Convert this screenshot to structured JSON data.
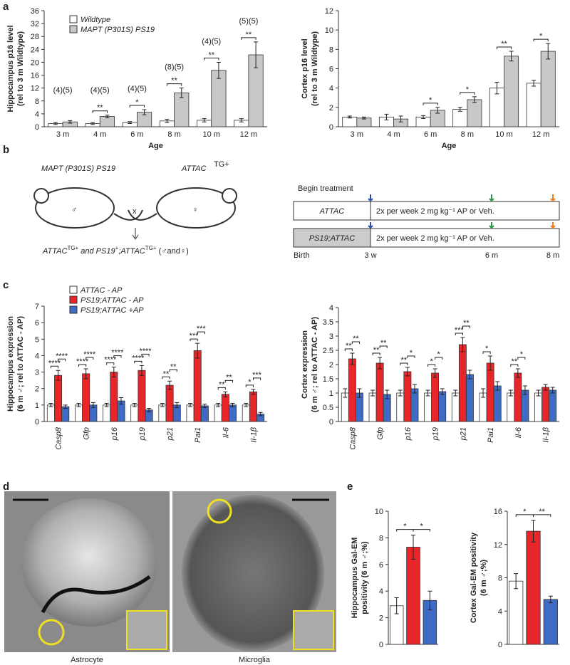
{
  "panels": [
    "a",
    "b",
    "c",
    "d",
    "e"
  ],
  "chart_data": [
    {
      "type": "bar",
      "ylabel": [
        "Hippocampus p16 level",
        "(rel to 3 m Wildtype)"
      ],
      "xlabel": "Age",
      "categories": [
        "3 m",
        "4 m",
        "6 m",
        "8 m",
        "10 m",
        "12 m"
      ],
      "series": [
        {
          "name": "Wildtype",
          "color": "#ffffff",
          "values": [
            1,
            1,
            1.3,
            1.8,
            2,
            2
          ],
          "errors": [
            0.3,
            0.3,
            0.3,
            0.5,
            0.5,
            0.5
          ]
        },
        {
          "name": "MAPT (P301S) PS19",
          "color": "#c8c8c8",
          "values": [
            1.5,
            3.2,
            4.5,
            10.5,
            17.5,
            22.3
          ],
          "errors": [
            0.4,
            0.4,
            0.8,
            1.5,
            2.5,
            4
          ]
        }
      ],
      "ylim": [
        0,
        36
      ],
      "yticks": [
        0,
        4,
        8,
        12,
        16,
        20,
        24,
        28,
        32,
        36
      ],
      "legend": "upper left",
      "n_labels": [
        "(4)(5)",
        "(4)(5)",
        "(4)(5)",
        "(8)(5)",
        "(4)(5)",
        "(5)(5)"
      ],
      "significance": [
        null,
        "**",
        "*",
        "**",
        "**",
        "**"
      ]
    },
    {
      "type": "bar",
      "ylabel": [
        "Cortex p16 level",
        "(rel to 3 m Wildtype)"
      ],
      "xlabel": "Age",
      "categories": [
        "3 m",
        "4 m",
        "6 m",
        "8 m",
        "10 m",
        "12 m"
      ],
      "series": [
        {
          "name": null,
          "color": "#ffffff",
          "values": [
            1,
            1,
            1,
            1.8,
            4,
            4.5
          ],
          "errors": [
            0.1,
            0.3,
            0.15,
            0.2,
            0.6,
            0.3
          ]
        },
        {
          "name": null,
          "color": "#c8c8c8",
          "values": [
            0.9,
            0.8,
            1.7,
            2.8,
            7.3,
            7.8
          ],
          "errors": [
            0.1,
            0.3,
            0.3,
            0.3,
            0.5,
            0.8
          ]
        }
      ],
      "ylim": [
        0,
        12
      ],
      "yticks": [
        0,
        2,
        4,
        6,
        8,
        10,
        12
      ],
      "significance": [
        null,
        null,
        "*",
        "*",
        "**",
        "*"
      ]
    },
    {
      "type": "bar",
      "ylabel": [
        "Hippocampus expression",
        "(6 m ♂; rel to ATTAC - AP)"
      ],
      "categories": [
        "Casp8",
        "Gfp",
        "p16",
        "p19",
        "p21",
        "Pai1",
        "Il-6",
        "Il-1β"
      ],
      "series": [
        {
          "name": "ATTAC - AP",
          "color": "#ffffff",
          "values": [
            1,
            1,
            1,
            1,
            1,
            1,
            1,
            1
          ],
          "errors": [
            0.1,
            0.1,
            0.1,
            0.1,
            0.1,
            0.1,
            0.1,
            0.1
          ]
        },
        {
          "name": "PS19;ATTAC - AP",
          "color": "#e8262a",
          "values": [
            2.8,
            2.9,
            3,
            3.1,
            2.2,
            4.3,
            1.65,
            1.8
          ],
          "errors": [
            0.3,
            0.3,
            0.3,
            0.3,
            0.25,
            0.45,
            0.15,
            0.15
          ]
        },
        {
          "name": "PS19;ATTAC +AP",
          "color": "#3e6bc4",
          "values": [
            0.9,
            1,
            1.25,
            0.7,
            1,
            0.95,
            1,
            0.45
          ],
          "errors": [
            0.1,
            0.15,
            0.2,
            0.1,
            0.15,
            0.1,
            0.1,
            0.1
          ]
        }
      ],
      "ylim": [
        0,
        7
      ],
      "yticks": [
        0,
        1,
        2,
        3,
        4,
        5,
        6,
        7
      ],
      "legend": "upper left",
      "significance": [
        "****",
        "****",
        "****",
        "****",
        "**",
        "***",
        "**",
        "*"
      ],
      "significance_treated": [
        "****",
        "****",
        "****",
        "****",
        "**",
        "***",
        "**",
        "***"
      ]
    },
    {
      "type": "bar",
      "ylabel": [
        "Cortex expression",
        "(6 m ♂; rel to ATTAC - AP)"
      ],
      "categories": [
        "Casp8",
        "Gfp",
        "p16",
        "p19",
        "p21",
        "Pai1",
        "Il-6",
        "Il-1β"
      ],
      "series": [
        {
          "name": null,
          "color": "#ffffff",
          "values": [
            1,
            1,
            1,
            1,
            1,
            1,
            1,
            1
          ],
          "errors": [
            0.15,
            0.1,
            0.1,
            0.1,
            0.1,
            0.15,
            0.1,
            0.1
          ]
        },
        {
          "name": null,
          "color": "#e8262a",
          "values": [
            2.2,
            2.05,
            1.75,
            1.7,
            2.7,
            2.05,
            1.7,
            1.2
          ],
          "errors": [
            0.2,
            0.2,
            0.15,
            0.15,
            0.25,
            0.25,
            0.15,
            0.1
          ]
        },
        {
          "name": null,
          "color": "#3e6bc4",
          "values": [
            1,
            0.95,
            1.15,
            1.05,
            1.65,
            1.25,
            1.1,
            1.1
          ],
          "errors": [
            0.15,
            0.15,
            0.15,
            0.1,
            0.15,
            0.15,
            0.15,
            0.1
          ]
        }
      ],
      "ylim": [
        0,
        4
      ],
      "yticks": [
        0,
        0.5,
        1,
        1.5,
        2,
        2.5,
        3,
        3.5,
        4
      ],
      "significance": [
        "**",
        "**",
        "**",
        "*",
        "***",
        "*",
        "**",
        null
      ],
      "significance_treated": [
        "**",
        "**",
        "*",
        "*",
        "**",
        null,
        "*",
        null
      ]
    },
    {
      "type": "bar",
      "ylabel": [
        "Hippocampus Gal-EM",
        "positivity (6 m ♂;%)"
      ],
      "categories": [
        null,
        null,
        null
      ],
      "values": [
        2.9,
        7.3,
        3.3
      ],
      "errors": [
        0.6,
        0.9,
        0.7
      ],
      "colors": [
        "#ffffff",
        "#e8262a",
        "#3e6bc4"
      ],
      "ylim": [
        0,
        10
      ],
      "yticks": [
        0,
        2,
        4,
        6,
        8,
        10
      ],
      "pair_significance": [
        "*",
        "*"
      ]
    },
    {
      "type": "bar",
      "ylabel": [
        "Cortex Gal-EM positivity",
        "(6 m ♂;%)"
      ],
      "categories": [
        null,
        null,
        null
      ],
      "values": [
        7.6,
        13.6,
        5.4
      ],
      "errors": [
        0.9,
        1.3,
        0.4
      ],
      "colors": [
        "#ffffff",
        "#e8262a",
        "#3e6bc4"
      ],
      "ylim": [
        0,
        16
      ],
      "yticks": [
        0,
        4,
        8,
        12,
        16
      ],
      "pair_significance": [
        "*",
        "**"
      ]
    }
  ],
  "diagram": {
    "parent1": "MAPT (P301S) PS19",
    "parent2": [
      "ATTAC",
      "TG+"
    ],
    "cross": "x",
    "male": "♂",
    "female": "♀",
    "offspring": [
      "ATTAC",
      "TG+",
      " and PS19",
      "+",
      ";ATTAC",
      "TG+",
      " (♂and♀)"
    ],
    "begin": "Begin treatment",
    "rows": [
      [
        "ATTAC",
        "2x per week 2 mg kg⁻¹ AP or Veh."
      ],
      [
        "PS19;ATTAC",
        "2x per week 2 mg kg⁻¹ AP or Veh."
      ]
    ],
    "timeline": [
      "Birth",
      "3 w",
      "6 m",
      "8 m"
    ]
  },
  "images": {
    "labels": [
      "Astrocyte",
      "Microglia"
    ]
  }
}
